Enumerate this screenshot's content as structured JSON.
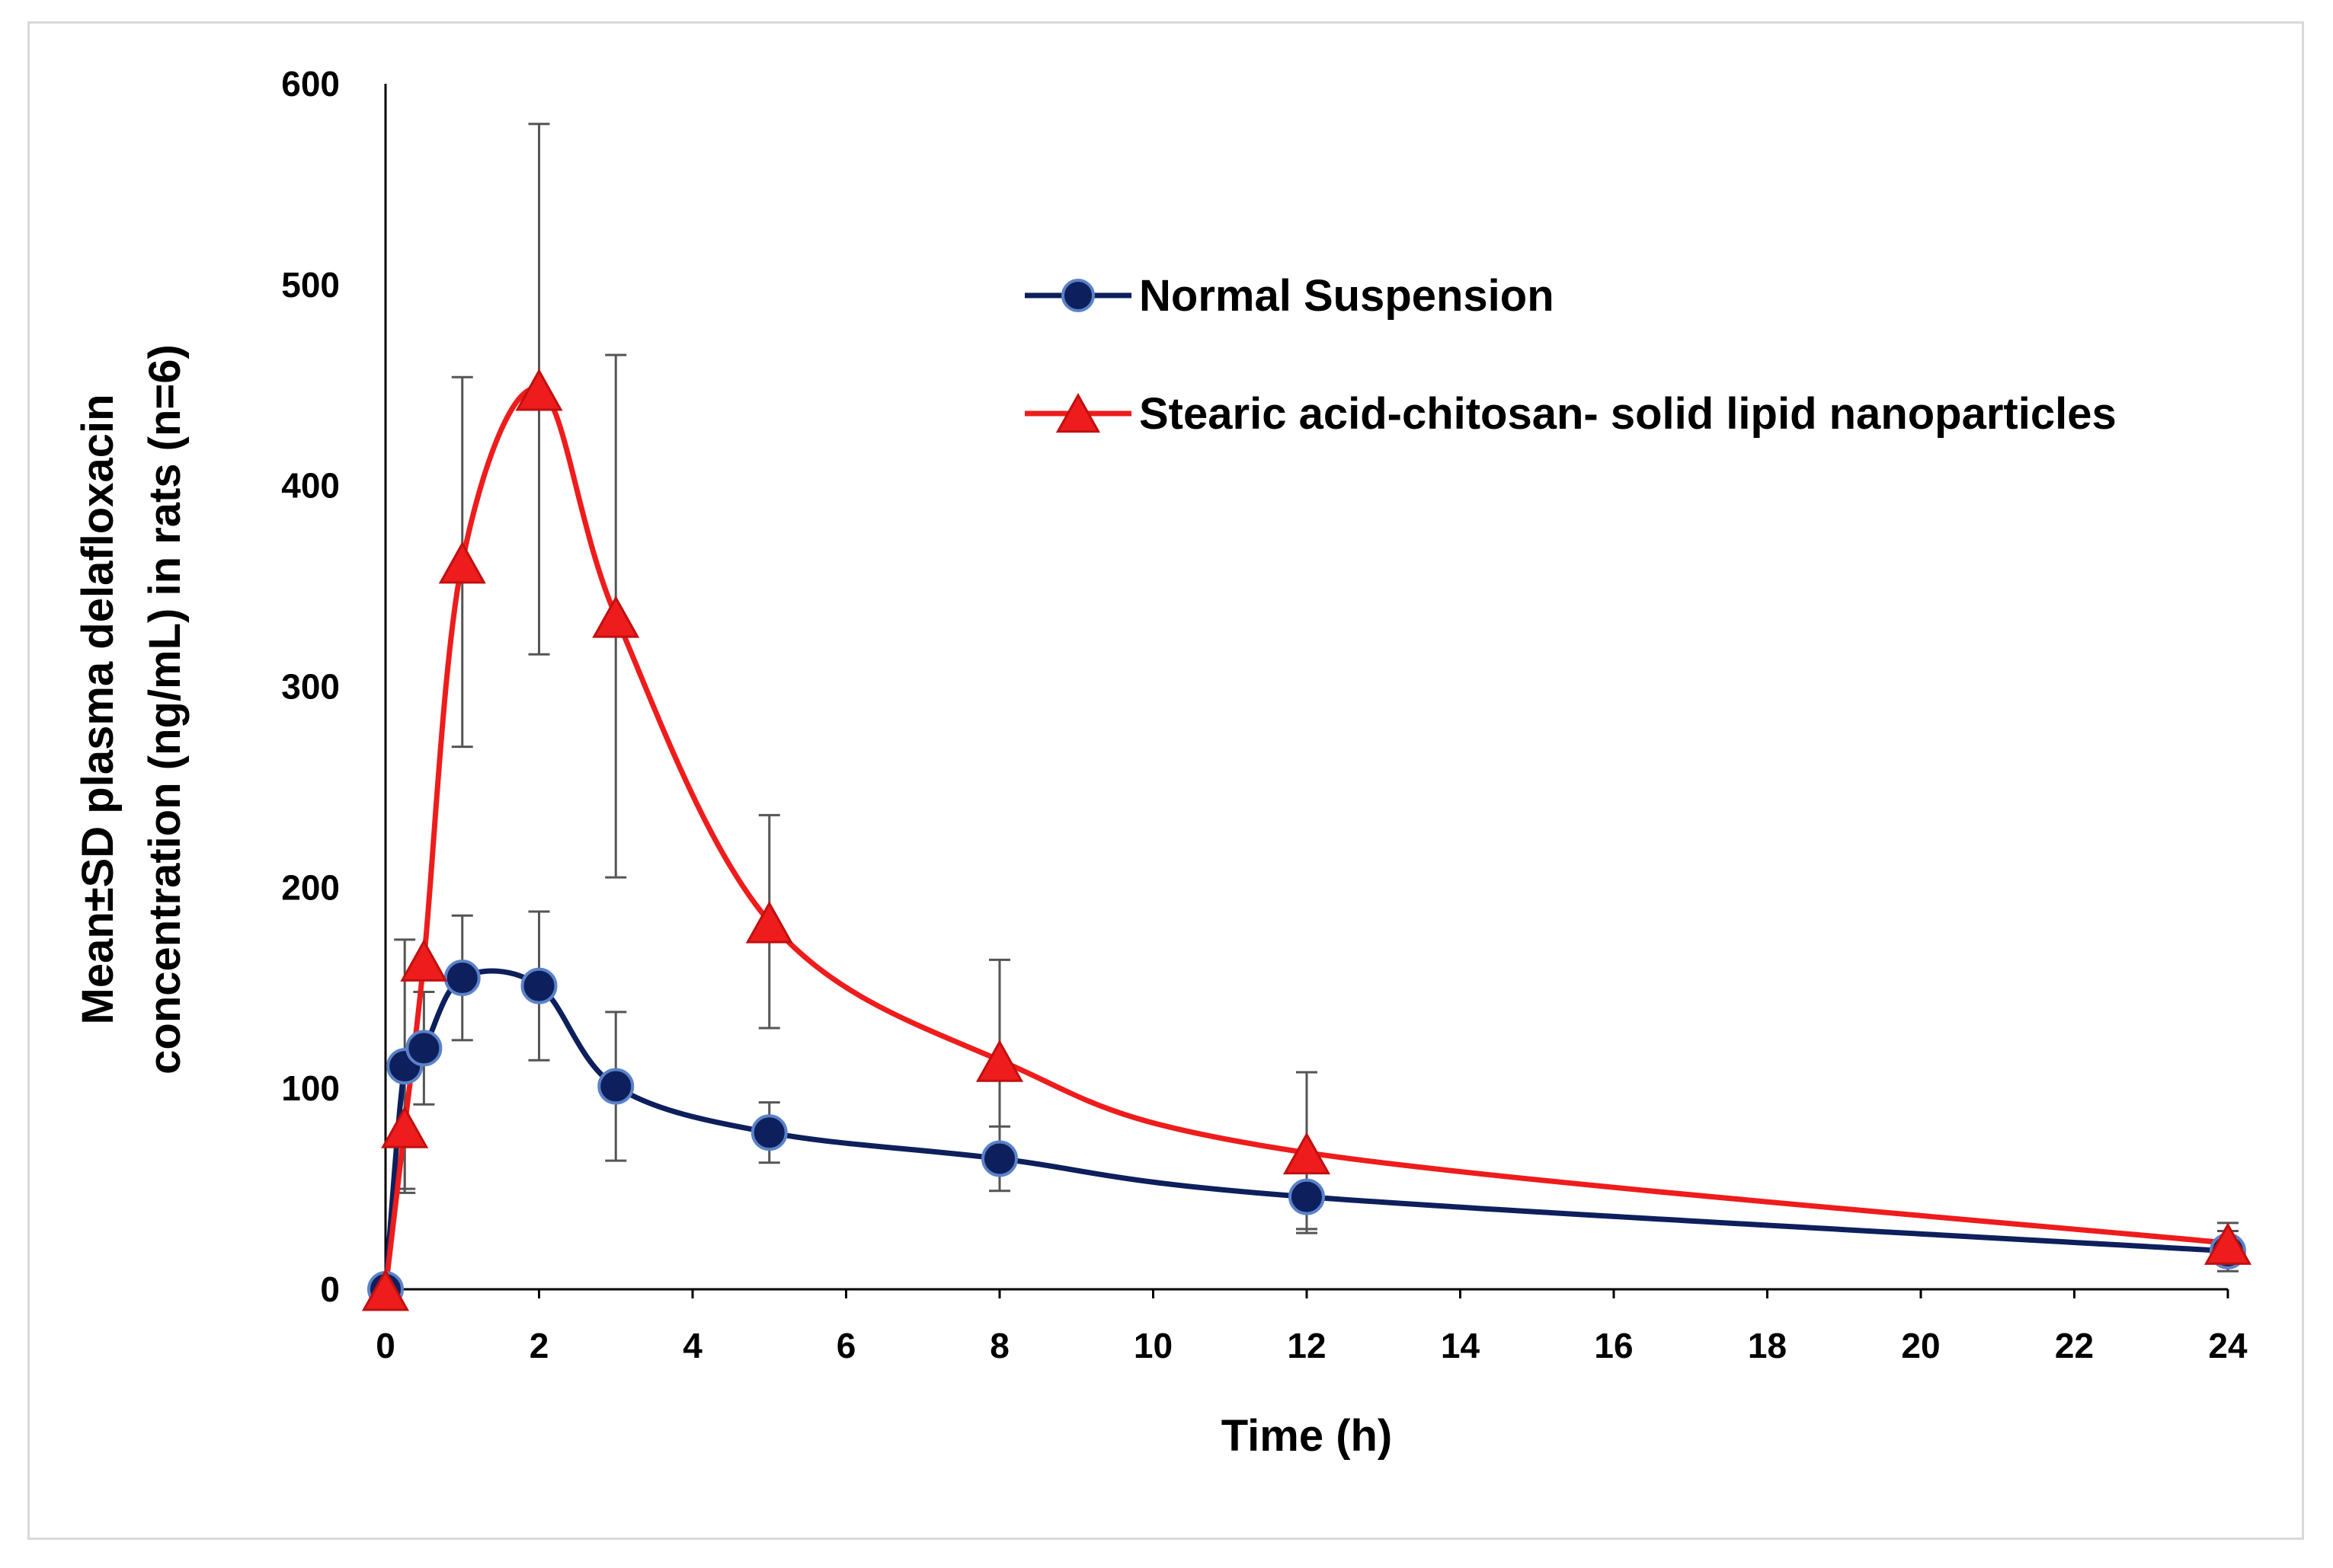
{
  "chart_data": {
    "type": "line",
    "title": "",
    "xlabel": "Time (h)",
    "ylabel_lines": [
      "Mean±SD plasma delafloxacin",
      "concentration (ng/mL) in rats (n=6)"
    ],
    "xlim": [
      0,
      24
    ],
    "ylim": [
      0,
      600
    ],
    "xticks": [
      0,
      2,
      4,
      6,
      8,
      10,
      12,
      14,
      16,
      18,
      20,
      22,
      24
    ],
    "yticks": [
      0,
      100,
      200,
      300,
      400,
      500,
      600
    ],
    "grid": false,
    "legend_position": "top-right",
    "series": [
      {
        "name": "Normal Suspension",
        "color": "#0d1f5c",
        "marker": "circle",
        "x": [
          0,
          0.25,
          0.5,
          1,
          2,
          3,
          5,
          8,
          12,
          24
        ],
        "y": [
          0,
          111,
          120,
          155,
          151,
          101,
          78,
          65,
          46,
          19
        ],
        "sd": [
          0,
          63,
          28,
          31,
          37,
          37,
          15,
          16,
          16,
          10
        ]
      },
      {
        "name": "Stearic acid-chitosan- solid lipid nanoparticles",
        "color": "#ee1c1c",
        "marker": "triangle",
        "x": [
          0,
          0.25,
          0.5,
          1,
          2,
          3,
          5,
          8,
          12,
          24
        ],
        "y": [
          0,
          81,
          164,
          362,
          448,
          335,
          183,
          114,
          68,
          23
        ],
        "sd": [
          0,
          31,
          0,
          92,
          132,
          130,
          53,
          50,
          40,
          10
        ]
      }
    ]
  }
}
